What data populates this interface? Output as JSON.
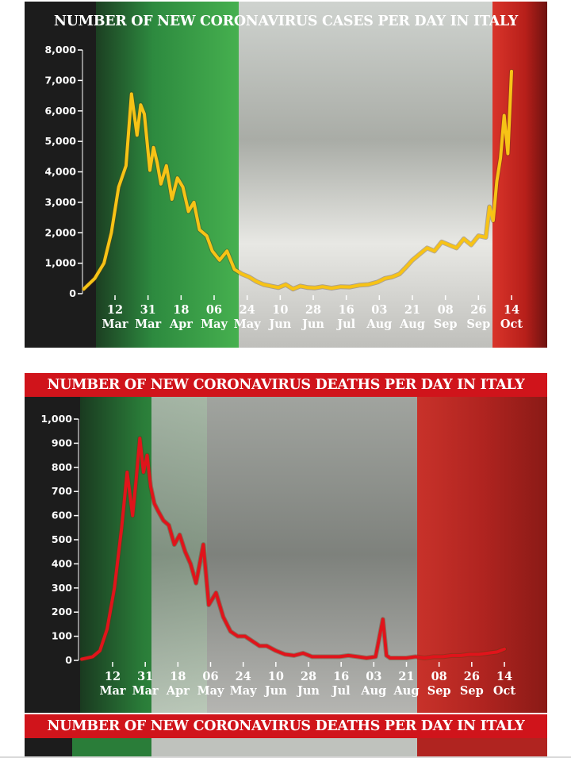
{
  "colors": {
    "green": "#1f8a3c",
    "white": "#e6e6e6",
    "red": "#b3261e",
    "title_red": "#d0141b",
    "cases_line": "#f7c316",
    "deaths_line": "#e0141b"
  },
  "chart_data": [
    {
      "type": "line",
      "title": "NUMBER OF NEW CORONAVIRUS CASES PER DAY IN ITALY",
      "xlabel": "",
      "ylabel": "",
      "ylim": [
        0,
        8000
      ],
      "yticks": [
        "8,000",
        "7,000",
        "6,000",
        "5,000",
        "4,000",
        "3,000",
        "2,000",
        "1,000",
        "0"
      ],
      "xticks": [
        {
          "day": "12",
          "month": "Mar"
        },
        {
          "day": "31",
          "month": "Mar"
        },
        {
          "day": "18",
          "month": "Apr"
        },
        {
          "day": "06",
          "month": "May"
        },
        {
          "day": "24",
          "month": "May"
        },
        {
          "day": "10",
          "month": "Jun"
        },
        {
          "day": "28",
          "month": "Jun"
        },
        {
          "day": "16",
          "month": "Jul"
        },
        {
          "day": "03",
          "month": "Aug"
        },
        {
          "day": "21",
          "month": "Aug"
        },
        {
          "day": "08",
          "month": "Sep"
        },
        {
          "day": "26",
          "month": "Sep"
        },
        {
          "day": "14",
          "month": "Oct"
        }
      ],
      "x": [
        "Feb 24",
        "Mar 1",
        "Mar 6",
        "Mar 10",
        "Mar 14",
        "Mar 18",
        "Mar 21",
        "Mar 24",
        "Mar 26",
        "Mar 28",
        "Mar 31",
        "Apr 2",
        "Apr 4",
        "Apr 6",
        "Apr 9",
        "Apr 12",
        "Apr 15",
        "Apr 18",
        "Apr 21",
        "Apr 24",
        "Apr 27",
        "May 1",
        "May 4",
        "May 8",
        "May 12",
        "May 16",
        "May 20",
        "May 24",
        "May 28",
        "Jun 1",
        "Jun 5",
        "Jun 9",
        "Jun 13",
        "Jun 17",
        "Jun 21",
        "Jun 25",
        "Jun 29",
        "Jul 3",
        "Jul 8",
        "Jul 13",
        "Jul 18",
        "Jul 23",
        "Jul 28",
        "Aug 2",
        "Aug 6",
        "Aug 10",
        "Aug 14",
        "Aug 18",
        "Aug 21",
        "Aug 25",
        "Aug 29",
        "Sep 2",
        "Sep 6",
        "Sep 10",
        "Sep 14",
        "Sep 18",
        "Sep 22",
        "Sep 26",
        "Sep 30",
        "Oct 2",
        "Oct 4",
        "Oct 6",
        "Oct 8",
        "Oct 10",
        "Oct 12",
        "Oct 14"
      ],
      "series": [
        {
          "values": [
            150,
            500,
            1000,
            2000,
            3500,
            4200,
            6557,
            5200,
            6200,
            5900,
            4050,
            4800,
            4300,
            3600,
            4200,
            3100,
            3800,
            3500,
            2700,
            3000,
            2100,
            1900,
            1400,
            1100,
            1400,
            800,
            650,
            550,
            400,
            300,
            250,
            200,
            300,
            150,
            250,
            200,
            190,
            230,
            180,
            230,
            220,
            280,
            300,
            380,
            500,
            550,
            650,
            900,
            1100,
            1300,
            1500,
            1400,
            1700,
            1600,
            1500,
            1800,
            1600,
            1900,
            1850,
            2850,
            2400,
            3700,
            4450,
            5850,
            4600,
            7300
          ]
        }
      ]
    },
    {
      "type": "line",
      "title": "NUMBER OF NEW CORONAVIRUS DEATHS PER DAY IN ITALY",
      "xlabel": "",
      "ylabel": "",
      "ylim": [
        0,
        1000
      ],
      "yticks": [
        "1,000",
        "900",
        "800",
        "700",
        "600",
        "500",
        "400",
        "300",
        "200",
        "100",
        "0"
      ],
      "xticks": [
        {
          "day": "12",
          "month": "Mar"
        },
        {
          "day": "31",
          "month": "Mar"
        },
        {
          "day": "18",
          "month": "Apr"
        },
        {
          "day": "06",
          "month": "May"
        },
        {
          "day": "24",
          "month": "May"
        },
        {
          "day": "10",
          "month": "Jun"
        },
        {
          "day": "28",
          "month": "Jun"
        },
        {
          "day": "16",
          "month": "Jul"
        },
        {
          "day": "03",
          "month": "Aug"
        },
        {
          "day": "21",
          "month": "Aug"
        },
        {
          "day": "08",
          "month": "Sep"
        },
        {
          "day": "26",
          "month": "Sep"
        },
        {
          "day": "14",
          "month": "Oct"
        }
      ],
      "x": [
        "Feb 24",
        "Mar 1",
        "Mar 5",
        "Mar 9",
        "Mar 13",
        "Mar 17",
        "Mar 20",
        "Mar 23",
        "Mar 25",
        "Mar 27",
        "Mar 29",
        "Mar 31",
        "Apr 2",
        "Apr 4",
        "Apr 6",
        "Apr 9",
        "Apr 12",
        "Apr 15",
        "Apr 18",
        "Apr 21",
        "Apr 24",
        "Apr 27",
        "May 1",
        "May 4",
        "May 8",
        "May 12",
        "May 16",
        "May 20",
        "May 24",
        "May 28",
        "Jun 1",
        "Jun 5",
        "Jun 10",
        "Jun 15",
        "Jun 20",
        "Jun 25",
        "Jun 30",
        "Jul 5",
        "Jul 10",
        "Jul 15",
        "Jul 20",
        "Jul 25",
        "Jul 30",
        "Aug 4",
        "Aug 8",
        "Aug 10",
        "Aug 12",
        "Aug 16",
        "Aug 21",
        "Aug 26",
        "Aug 31",
        "Sep 5",
        "Sep 10",
        "Sep 15",
        "Sep 20",
        "Sep 25",
        "Sep 30",
        "Oct 5",
        "Oct 10",
        "Oct 14"
      ],
      "series": [
        {
          "values": [
            5,
            15,
            40,
            130,
            300,
            550,
            780,
            600,
            750,
            920,
            780,
            850,
            720,
            650,
            620,
            580,
            560,
            480,
            520,
            450,
            400,
            320,
            480,
            230,
            280,
            180,
            120,
            100,
            100,
            80,
            60,
            60,
            40,
            25,
            20,
            30,
            15,
            15,
            15,
            15,
            20,
            15,
            10,
            15,
            170,
            20,
            10,
            10,
            10,
            15,
            10,
            15,
            15,
            20,
            20,
            25,
            25,
            30,
            35,
            47
          ]
        }
      ]
    }
  ],
  "repeat_banner": {
    "title": "NUMBER OF NEW CORONAVIRUS DEATHS PER DAY IN ITALY"
  }
}
